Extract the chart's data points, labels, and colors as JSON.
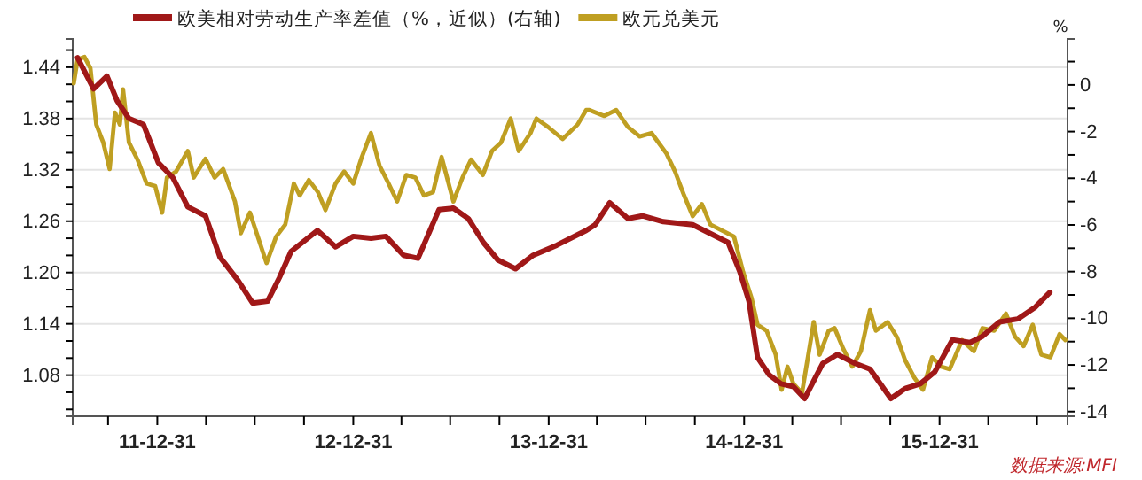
{
  "chart_data": {
    "type": "line",
    "y2label": "%",
    "legend": "top",
    "grid": "y",
    "line_style": "solid",
    "marker": "none",
    "xlim": [
      "2011-07-26",
      "2016-08-26"
    ],
    "xticks": [
      {
        "value": "2011-09-30",
        "label": null
      },
      {
        "value": "2011-12-31",
        "label": "11-12-31"
      },
      {
        "value": "2012-03-31",
        "label": null
      },
      {
        "value": "2012-06-30",
        "label": null
      },
      {
        "value": "2012-09-30",
        "label": null
      },
      {
        "value": "2012-12-31",
        "label": "12-12-31"
      },
      {
        "value": "2013-03-31",
        "label": null
      },
      {
        "value": "2013-06-30",
        "label": null
      },
      {
        "value": "2013-09-30",
        "label": null
      },
      {
        "value": "2013-12-31",
        "label": "13-12-31"
      },
      {
        "value": "2014-03-31",
        "label": null
      },
      {
        "value": "2014-06-30",
        "label": null
      },
      {
        "value": "2014-09-30",
        "label": null
      },
      {
        "value": "2014-12-31",
        "label": "14-12-31"
      },
      {
        "value": "2015-03-31",
        "label": null
      },
      {
        "value": "2015-06-30",
        "label": null
      },
      {
        "value": "2015-09-30",
        "label": null
      },
      {
        "value": "2015-12-31",
        "label": "15-12-31"
      },
      {
        "value": "2016-03-31",
        "label": null
      },
      {
        "value": "2016-06-30",
        "label": null
      }
    ],
    "ylim": [
      1.032,
      1.473
    ],
    "yticks": [
      {
        "value": 1.04,
        "label": null
      },
      {
        "value": 1.06,
        "label": null
      },
      1.08,
      {
        "value": 1.1,
        "label": null
      },
      {
        "value": 1.12,
        "label": null
      },
      1.14,
      {
        "value": 1.16,
        "label": null
      },
      {
        "value": 1.18,
        "label": null
      },
      {
        "value": 1.2,
        "label": "1.20"
      },
      {
        "value": 1.22,
        "label": null
      },
      {
        "value": 1.24,
        "label": null
      },
      1.26,
      {
        "value": 1.28,
        "label": null
      },
      {
        "value": 1.3,
        "label": null
      },
      1.32,
      {
        "value": 1.34,
        "label": null
      },
      {
        "value": 1.36,
        "label": null
      },
      1.38,
      {
        "value": 1.4,
        "label": null
      },
      {
        "value": 1.42,
        "label": null
      },
      1.44,
      {
        "value": 1.46,
        "label": null
      }
    ],
    "y2lim": [
      -14.2,
      1.97
    ],
    "y2ticks": [
      -14,
      {
        "value": -13,
        "label": null
      },
      -12,
      {
        "value": -11,
        "label": null
      },
      -10,
      {
        "value": -9,
        "label": null
      },
      -8,
      {
        "value": -7,
        "label": null
      },
      -6,
      {
        "value": -5,
        "label": null
      },
      -4,
      {
        "value": -3,
        "label": null
      },
      -2,
      {
        "value": -1,
        "label": null
      },
      0,
      {
        "value": 1,
        "label": null
      }
    ],
    "annotations": [
      "数据来源:MFI"
    ],
    "series": [
      {
        "name": "欧美相对劳动生产率差值（%，近似）(右轴)",
        "color": "#a01818",
        "axis": "y2",
        "x": [
          "2011-08-04",
          "2011-09-03",
          "2011-09-28",
          "2011-10-17",
          "2011-11-08",
          "2011-12-05",
          "2012-01-02",
          "2012-01-29",
          "2012-02-26",
          "2012-03-30",
          "2012-04-26",
          "2012-05-30",
          "2012-06-26",
          "2012-07-24",
          "2012-08-15",
          "2012-09-06",
          "2012-10-25",
          "2012-11-28",
          "2012-12-31",
          "2013-02-02",
          "2013-03-02",
          "2013-04-04",
          "2013-05-01",
          "2013-06-09",
          "2013-07-06",
          "2013-08-03",
          "2013-08-31",
          "2013-09-27",
          "2013-10-30",
          "2013-12-02",
          "2014-01-15",
          "2014-03-11",
          "2014-03-28",
          "2014-04-24",
          "2014-05-28",
          "2014-06-24",
          "2014-08-02",
          "2014-09-26",
          "2014-10-29",
          "2014-12-01",
          "2014-12-23",
          "2015-01-09",
          "2015-01-25",
          "2015-02-16",
          "2015-03-10",
          "2015-04-02",
          "2015-04-23",
          "2015-05-27",
          "2015-06-23",
          "2015-07-26",
          "2015-08-23",
          "2015-10-01",
          "2015-10-28",
          "2015-11-25",
          "2015-12-22",
          "2016-01-24",
          "2016-02-26",
          "2016-03-19",
          "2016-04-21",
          "2016-05-25",
          "2016-06-27",
          "2016-07-24"
        ],
        "values": [
          1.17,
          -0.17,
          0.38,
          -0.68,
          -1.44,
          -1.69,
          -3.34,
          -3.97,
          -5.23,
          -5.61,
          -7.38,
          -8.39,
          -9.35,
          -9.27,
          -8.26,
          -7.13,
          -6.24,
          -6.94,
          -6.49,
          -6.57,
          -6.49,
          -7.3,
          -7.43,
          -5.35,
          -5.28,
          -5.73,
          -6.75,
          -7.5,
          -7.88,
          -7.3,
          -6.87,
          -6.24,
          -5.99,
          -5.05,
          -5.73,
          -5.61,
          -5.86,
          -5.99,
          -6.37,
          -6.75,
          -8.01,
          -9.27,
          -11.68,
          -12.43,
          -12.81,
          -12.93,
          -13.44,
          -11.93,
          -11.55,
          -11.93,
          -12.18,
          -13.44,
          -13.01,
          -12.81,
          -12.3,
          -10.92,
          -11.04,
          -10.79,
          -10.16,
          -10.03,
          -9.52,
          -8.89
        ]
      },
      {
        "name": "欧元兑美元",
        "color": "#bf9f22",
        "x": [
          "2011-07-28",
          "2011-08-04",
          "2011-08-17",
          "2011-08-28",
          "2011-09-08",
          "2011-09-21",
          "2011-10-03",
          "2011-10-13",
          "2011-10-22",
          "2011-10-28",
          "2011-11-08",
          "2011-11-24",
          "2011-12-11",
          "2011-12-27",
          "2012-01-09",
          "2012-01-18",
          "2012-02-04",
          "2012-02-26",
          "2012-03-08",
          "2012-03-30",
          "2012-04-16",
          "2012-05-02",
          "2012-05-24",
          "2012-06-04",
          "2012-06-21",
          "2012-07-02",
          "2012-07-22",
          "2012-08-09",
          "2012-08-26",
          "2012-09-11",
          "2012-09-22",
          "2012-10-09",
          "2012-10-26",
          "2012-11-09",
          "2012-11-28",
          "2012-12-14",
          "2012-12-31",
          "2013-01-16",
          "2013-02-02",
          "2013-02-18",
          "2013-03-07",
          "2013-03-23",
          "2013-04-09",
          "2013-04-26",
          "2013-05-12",
          "2013-05-29",
          "2013-06-14",
          "2013-07-06",
          "2013-07-23",
          "2013-08-08",
          "2013-08-30",
          "2013-09-16",
          "2013-10-03",
          "2013-10-21",
          "2013-11-05",
          "2013-11-27",
          "2013-12-08",
          "2013-12-30",
          "2014-01-26",
          "2014-02-23",
          "2014-03-11",
          "2014-03-17",
          "2014-04-14",
          "2014-05-06",
          "2014-05-28",
          "2014-06-19",
          "2014-07-11",
          "2014-08-08",
          "2014-08-24",
          "2014-09-10",
          "2014-09-26",
          "2014-10-13",
          "2014-10-29",
          "2014-11-20",
          "2014-12-12",
          "2014-12-29",
          "2015-01-14",
          "2015-01-25",
          "2015-02-11",
          "2015-02-28",
          "2015-03-11",
          "2015-03-22",
          "2015-04-02",
          "2015-04-18",
          "2015-05-10",
          "2015-05-21",
          "2015-06-07",
          "2015-06-18",
          "2015-07-04",
          "2015-07-21",
          "2015-08-06",
          "2015-08-23",
          "2015-09-03",
          "2015-09-25",
          "2015-10-12",
          "2015-10-28",
          "2015-11-14",
          "2015-11-30",
          "2015-12-17",
          "2016-01-03",
          "2016-01-19",
          "2016-02-11",
          "2016-03-04",
          "2016-03-20",
          "2016-04-11",
          "2016-05-03",
          "2016-05-20",
          "2016-06-05",
          "2016-06-22",
          "2016-07-08",
          "2016-07-25",
          "2016-08-11",
          "2016-08-22"
        ],
        "values": [
          1.421,
          1.449,
          1.452,
          1.439,
          1.373,
          1.352,
          1.321,
          1.387,
          1.373,
          1.414,
          1.352,
          1.332,
          1.304,
          1.301,
          1.27,
          1.311,
          1.318,
          1.342,
          1.311,
          1.333,
          1.311,
          1.321,
          1.283,
          1.246,
          1.27,
          1.249,
          1.211,
          1.242,
          1.256,
          1.304,
          1.29,
          1.308,
          1.294,
          1.273,
          1.304,
          1.318,
          1.304,
          1.335,
          1.363,
          1.325,
          1.304,
          1.283,
          1.314,
          1.311,
          1.29,
          1.294,
          1.335,
          1.283,
          1.311,
          1.332,
          1.314,
          1.342,
          1.352,
          1.38,
          1.342,
          1.363,
          1.38,
          1.37,
          1.356,
          1.373,
          1.39,
          1.39,
          1.383,
          1.39,
          1.37,
          1.359,
          1.363,
          1.339,
          1.318,
          1.29,
          1.266,
          1.28,
          1.256,
          1.249,
          1.242,
          1.201,
          1.17,
          1.139,
          1.132,
          1.104,
          1.063,
          1.09,
          1.07,
          1.059,
          1.142,
          1.104,
          1.132,
          1.135,
          1.111,
          1.09,
          1.108,
          1.156,
          1.132,
          1.142,
          1.125,
          1.097,
          1.077,
          1.063,
          1.101,
          1.09,
          1.087,
          1.121,
          1.108,
          1.135,
          1.132,
          1.152,
          1.125,
          1.114,
          1.139,
          1.104,
          1.101,
          1.128,
          1.121
        ]
      }
    ]
  }
}
